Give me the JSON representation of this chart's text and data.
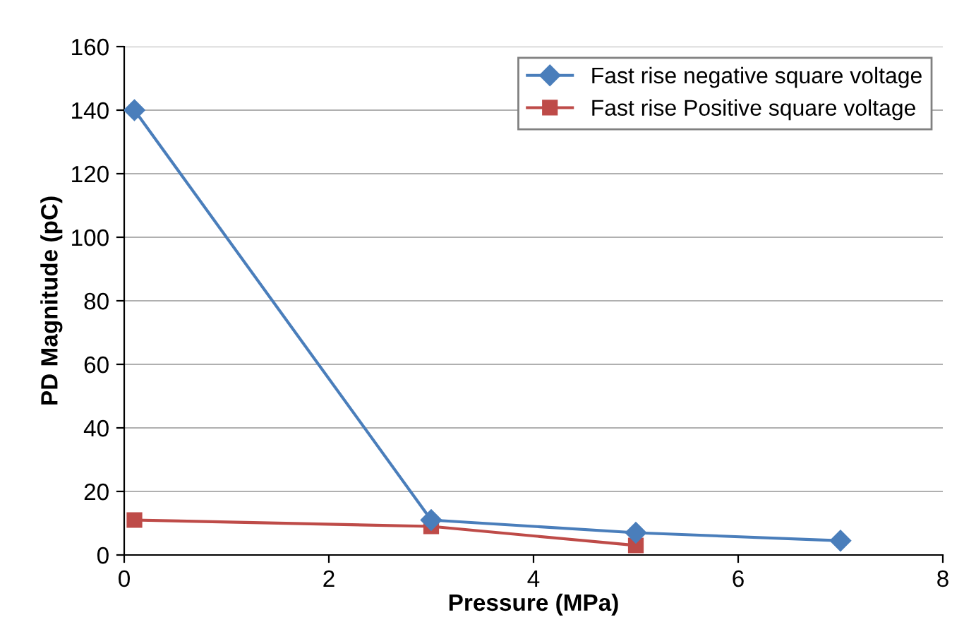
{
  "chart_data": {
    "type": "line",
    "xlabel": "Pressure (MPa)",
    "ylabel": "PD Magnitude (pC)",
    "xlim": [
      0,
      8
    ],
    "xticks": [
      0,
      2,
      4,
      6,
      8
    ],
    "ylim": [
      0,
      160
    ],
    "yticks": [
      0,
      20,
      40,
      60,
      80,
      100,
      120,
      140,
      160
    ],
    "grid": "y",
    "legend": "top right",
    "line_style": "solid",
    "series": [
      {
        "name": "Fast rise negative square voltage",
        "color": "#4a7ebb",
        "marker": "diamond",
        "x": [
          0.1,
          3,
          5,
          7
        ],
        "values": [
          140,
          11,
          7,
          4.5
        ]
      },
      {
        "name": "Fast rise Positive square voltage",
        "color": "#be4b48",
        "marker": "square",
        "x": [
          0.1,
          3,
          5
        ],
        "values": [
          11,
          9,
          3
        ]
      }
    ]
  }
}
